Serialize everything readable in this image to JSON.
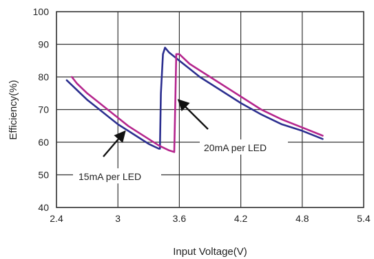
{
  "chart_data": {
    "type": "line",
    "xlabel": "Input Voltage(V)",
    "ylabel": "Efficiency(%)",
    "xlim": [
      2.4,
      5.4
    ],
    "ylim": [
      40,
      100
    ],
    "x_ticks": [
      "2.4",
      "3",
      "3.6",
      "4.2",
      "4.8",
      "5.4"
    ],
    "y_ticks": [
      "40",
      "50",
      "60",
      "70",
      "80",
      "90",
      "100"
    ],
    "grid": true,
    "series": [
      {
        "name": "15mA per LED",
        "color": "#2b2e8f",
        "x": [
          2.5,
          2.6,
          2.7,
          2.8,
          2.9,
          3.0,
          3.1,
          3.2,
          3.3,
          3.4,
          3.41,
          3.42,
          3.44,
          3.46,
          3.5,
          3.6,
          3.7,
          3.8,
          3.9,
          4.0,
          4.2,
          4.4,
          4.6,
          4.8,
          5.0
        ],
        "y": [
          79,
          76,
          73,
          70.5,
          68,
          65.5,
          63.5,
          61.5,
          59.5,
          58,
          58,
          75,
          87,
          89,
          87.5,
          85,
          82.5,
          80,
          78,
          76,
          72,
          68.5,
          65.5,
          63.5,
          61
        ]
      },
      {
        "name": "20mA per LED",
        "color": "#b5258d",
        "x": [
          2.55,
          2.6,
          2.7,
          2.8,
          2.9,
          3.0,
          3.1,
          3.2,
          3.3,
          3.4,
          3.5,
          3.55,
          3.56,
          3.57,
          3.6,
          3.7,
          3.8,
          3.9,
          4.0,
          4.2,
          4.4,
          4.6,
          4.8,
          5.0
        ],
        "y": [
          80,
          78,
          75,
          72.5,
          70,
          67.5,
          65,
          63,
          61,
          59,
          57.5,
          57,
          72,
          87,
          87,
          84,
          82,
          80,
          78,
          74,
          70,
          67,
          64.5,
          62
        ]
      }
    ],
    "annotations": [
      {
        "text": "15mA per LED",
        "target_x": 3.07,
        "target_y": 64
      },
      {
        "text": "20mA per LED",
        "target_x": 3.57,
        "target_y": 73
      }
    ]
  }
}
